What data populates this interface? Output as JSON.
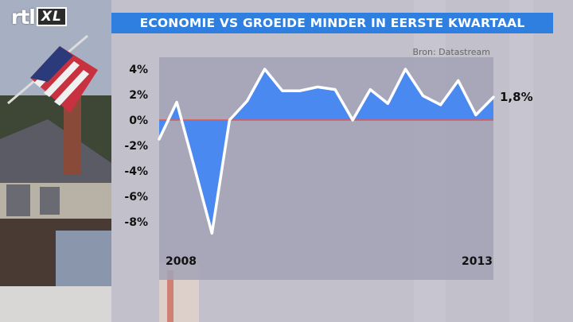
{
  "logo": {
    "brand": "rtl",
    "channel": "XL"
  },
  "header": {
    "title": "ECONOMIE VS GROEIDE MINDER IN EERSTE KWARTAAL"
  },
  "chart_data": {
    "type": "area",
    "title": "ECONOMIE VS GROEIDE MINDER IN EERSTE KWARTAAL",
    "source": "Bron: Datastream",
    "xlabel": "",
    "ylabel": "",
    "x_tick_labels": [
      "2008",
      "2013"
    ],
    "y_ticks": [
      {
        "value": 4,
        "label": "4%"
      },
      {
        "value": 2,
        "label": "2%"
      },
      {
        "value": 0,
        "label": "0%"
      },
      {
        "value": -2,
        "label": "-2%"
      },
      {
        "value": -4,
        "label": "-4%"
      },
      {
        "value": -6,
        "label": "-6%"
      },
      {
        "value": -8,
        "label": "-8%"
      }
    ],
    "ylim": [
      -9.5,
      4.8
    ],
    "series": [
      {
        "values": [
          -1.5,
          1.4,
          -3.7,
          -8.9,
          0.0,
          1.5,
          4.0,
          2.3,
          2.3,
          2.6,
          2.4,
          0.0,
          2.4,
          1.3,
          4.0,
          1.9,
          1.2,
          3.1,
          0.4,
          1.8
        ]
      }
    ],
    "last_value_label": "1,8%",
    "grid": false,
    "colors": {
      "line": "#ffffff",
      "fill": "#4a8af0",
      "zero_line": "#e8574a",
      "plot_bg": "#9e9db1"
    }
  }
}
